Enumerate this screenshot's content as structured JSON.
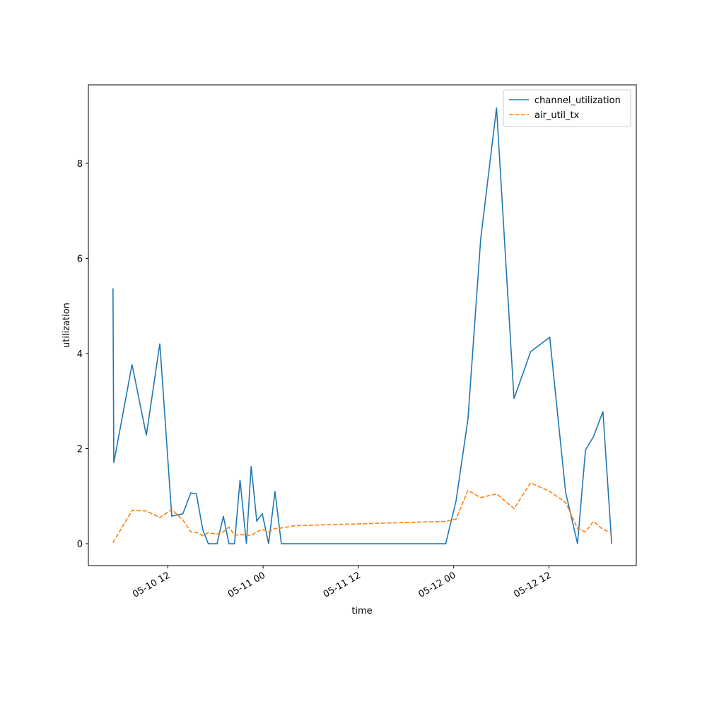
{
  "chart_data": {
    "type": "line",
    "xlabel": "time",
    "ylabel": "utilization",
    "x": [
      "05-10 05:06",
      "05-10 05:12",
      "05-10 07:30",
      "05-10 09:18",
      "05-10 11:00",
      "05-10 12:30",
      "05-10 13:54",
      "05-10 14:54",
      "05-10 15:36",
      "05-10 16:24",
      "05-10 17:06",
      "05-10 18:12",
      "05-10 19:00",
      "05-10 19:42",
      "05-10 20:24",
      "05-10 21:06",
      "05-10 21:54",
      "05-10 22:30",
      "05-10 23:12",
      "05-10 23:54",
      "05-11 00:42",
      "05-11 01:30",
      "05-11 02:18",
      "05-11 04:06",
      "05-11 23:00",
      "05-12 00:18",
      "05-12 01:48",
      "05-12 03:24",
      "05-12 05:24",
      "05-12 07:36",
      "05-12 09:42",
      "05-12 12:06",
      "05-12 14:06",
      "05-12 15:36",
      "05-12 16:36",
      "05-12 17:36",
      "05-12 18:48",
      "05-12 19:54"
    ],
    "series": [
      {
        "name": "channel_utilization",
        "color": "#1f77b4",
        "dash": false,
        "values": [
          5.37,
          1.7,
          3.77,
          2.28,
          4.21,
          0.58,
          0.63,
          1.07,
          1.05,
          0.3,
          0,
          0,
          0.58,
          0,
          0,
          1.34,
          0,
          1.63,
          0.48,
          0.63,
          0,
          1.1,
          0,
          0,
          0,
          0.9,
          2.62,
          6.4,
          9.17,
          3.05,
          4.04,
          4.34,
          1.08,
          0,
          1.97,
          2.25,
          2.78,
          0
        ]
      },
      {
        "name": "air_util_tx",
        "color": "#ff7f0e",
        "dash": true,
        "values": [
          0.02,
          0.05,
          0.7,
          0.69,
          0.55,
          0.72,
          0.5,
          0.25,
          0.24,
          0.17,
          0.23,
          0.2,
          0.25,
          0.35,
          0.18,
          0.19,
          0.19,
          0.17,
          0.25,
          0.3,
          0.25,
          0.32,
          0.33,
          0.38,
          0.47,
          0.52,
          1.12,
          0.97,
          1.05,
          0.74,
          1.28,
          1.1,
          0.87,
          0.32,
          0.25,
          0.47,
          0.3,
          0.23
        ]
      }
    ],
    "xlim": [
      "05-10 02:00",
      "05-12 23:00"
    ],
    "xticks": [
      {
        "value": "05-10 12:00",
        "label": "05-10 12"
      },
      {
        "value": "05-11 00:00",
        "label": "05-11 00"
      },
      {
        "value": "05-11 12:00",
        "label": "05-11 12"
      },
      {
        "value": "05-12 00:00",
        "label": "05-12 00"
      },
      {
        "value": "05-12 12:00",
        "label": "05-12 12"
      }
    ],
    "ylim": [
      -0.46,
      9.65
    ],
    "yticks": [
      0,
      2,
      4,
      6,
      8
    ],
    "legend": "upper right"
  }
}
